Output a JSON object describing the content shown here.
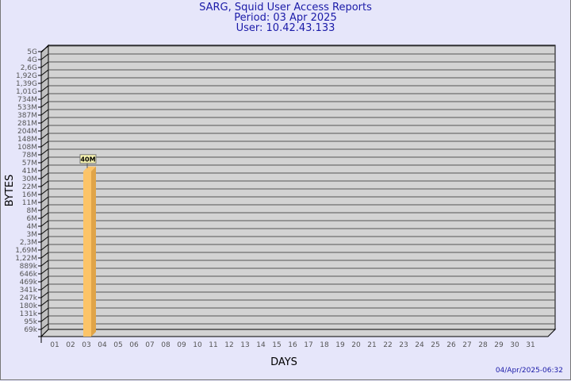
{
  "header": {
    "title": "SARG, Squid User Access Reports",
    "period": "Period: 03 Apr 2025",
    "user": "User: 10.42.43.133"
  },
  "footer": {
    "timestamp": "04/Apr/2025-06:32"
  },
  "colors": {
    "background": "#e6e6fa",
    "plot_face": "#d3d3d3",
    "plot_side": "#c0c0c0",
    "bar_front": "#fcc468",
    "bar_side": "#e0a448",
    "label_box": "#f8f4b0",
    "title": "#1a1aa8"
  },
  "chart_data": {
    "type": "bar",
    "xlabel": "DAYS",
    "ylabel": "BYTES",
    "grid": true,
    "categories": [
      "01",
      "02",
      "03",
      "04",
      "05",
      "06",
      "07",
      "08",
      "09",
      "10",
      "11",
      "12",
      "13",
      "14",
      "15",
      "16",
      "17",
      "18",
      "19",
      "20",
      "21",
      "22",
      "23",
      "24",
      "25",
      "26",
      "27",
      "28",
      "29",
      "30",
      "31"
    ],
    "y_ticks": [
      "5G",
      "4G",
      "2,6G",
      "1,92G",
      "1,39G",
      "1,01G",
      "734M",
      "533M",
      "387M",
      "281M",
      "204M",
      "148M",
      "108M",
      "78M",
      "57M",
      "41M",
      "30M",
      "22M",
      "16M",
      "11M",
      "8M",
      "6M",
      "4M",
      "3M",
      "2,3M",
      "1,69M",
      "1,22M",
      "889k",
      "646k",
      "469k",
      "341k",
      "247k",
      "180k",
      "131k",
      "95k",
      "69k"
    ],
    "bars": [
      {
        "category": "03",
        "value": 40000000,
        "label": "40M"
      }
    ]
  }
}
